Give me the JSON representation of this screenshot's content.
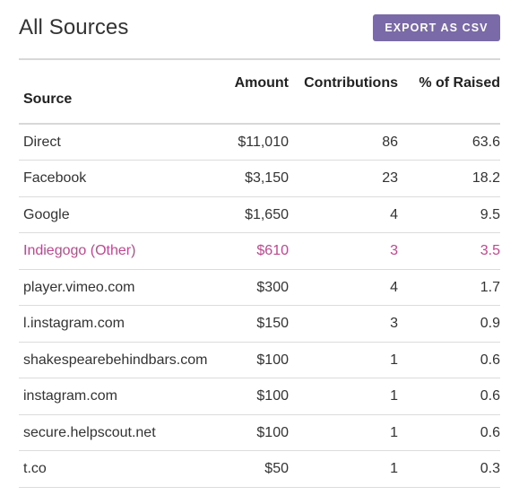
{
  "header": {
    "title": "All Sources",
    "export_label": "EXPORT AS CSV"
  },
  "table": {
    "columns": [
      "Source",
      "Amount",
      "Contributions",
      "% of Raised"
    ],
    "rows": [
      {
        "source": "Direct",
        "amount": "$11,010",
        "contributions": "86",
        "percent": "63.6",
        "highlighted": false
      },
      {
        "source": "Facebook",
        "amount": "$3,150",
        "contributions": "23",
        "percent": "18.2",
        "highlighted": false
      },
      {
        "source": "Google",
        "amount": "$1,650",
        "contributions": "4",
        "percent": "9.5",
        "highlighted": false
      },
      {
        "source": "Indiegogo (Other)",
        "amount": "$610",
        "contributions": "3",
        "percent": "3.5",
        "highlighted": true
      },
      {
        "source": "player.vimeo.com",
        "amount": "$300",
        "contributions": "4",
        "percent": "1.7",
        "highlighted": false
      },
      {
        "source": "l.instagram.com",
        "amount": "$150",
        "contributions": "3",
        "percent": "0.9",
        "highlighted": false
      },
      {
        "source": "shakespearebehindbars.com",
        "amount": "$100",
        "contributions": "1",
        "percent": "0.6",
        "highlighted": false
      },
      {
        "source": "instagram.com",
        "amount": "$100",
        "contributions": "1",
        "percent": "0.6",
        "highlighted": false
      },
      {
        "source": "secure.helpscout.net",
        "amount": "$100",
        "contributions": "1",
        "percent": "0.6",
        "highlighted": false
      },
      {
        "source": "t.co",
        "amount": "$50",
        "contributions": "1",
        "percent": "0.3",
        "highlighted": false
      }
    ]
  },
  "colors": {
    "accent_button": "#7a6aa8",
    "highlight_row": "#c0478f"
  }
}
